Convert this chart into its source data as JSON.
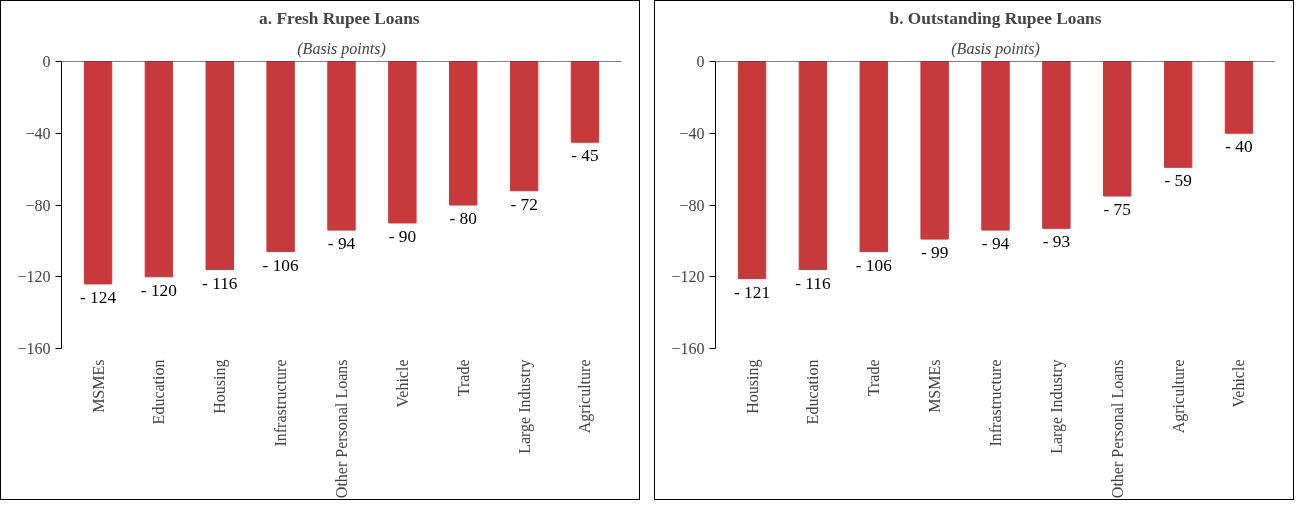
{
  "chart_data": [
    {
      "type": "bar",
      "title": "a.  Fresh Rupee Loans",
      "subtitle": "(Basis points)",
      "categories": [
        "MSMEs",
        "Education",
        "Housing",
        "Infrastructure",
        "Other Personal Loans",
        "Vehicle",
        "Trade",
        "Large Industry",
        "Agriculture"
      ],
      "values": [
        -124,
        -120,
        -116,
        -106,
        -94,
        -90,
        -80,
        -72,
        -45
      ],
      "value_labels": [
        "- 124",
        "- 120",
        "- 116",
        "- 106",
        "- 94",
        "- 90",
        "- 80",
        "- 72",
        "- 45"
      ],
      "color": "#c8393b",
      "ylim": [
        -160,
        0
      ],
      "yticks": [
        -160,
        -120,
        -80,
        -40,
        0
      ]
    },
    {
      "type": "bar",
      "title": "b. Outstanding Rupee Loans",
      "subtitle": "(Basis points)",
      "categories": [
        "Housing",
        "Education",
        "Trade",
        "MSMEs",
        "Infrastructure",
        "Large Industry",
        "Other Personal Loans",
        "Agriculture",
        "Vehicle"
      ],
      "values": [
        -121,
        -116,
        -106,
        -99,
        -94,
        -93,
        -75,
        -59,
        -40
      ],
      "value_labels": [
        "- 121",
        "- 116",
        "- 106",
        "- 99",
        "- 94",
        "- 93",
        "- 75",
        "- 59",
        "- 40"
      ],
      "color": "#c8393b",
      "ylim": [
        -160,
        0
      ],
      "yticks": [
        -160,
        -120,
        -80,
        -40,
        0
      ]
    }
  ]
}
